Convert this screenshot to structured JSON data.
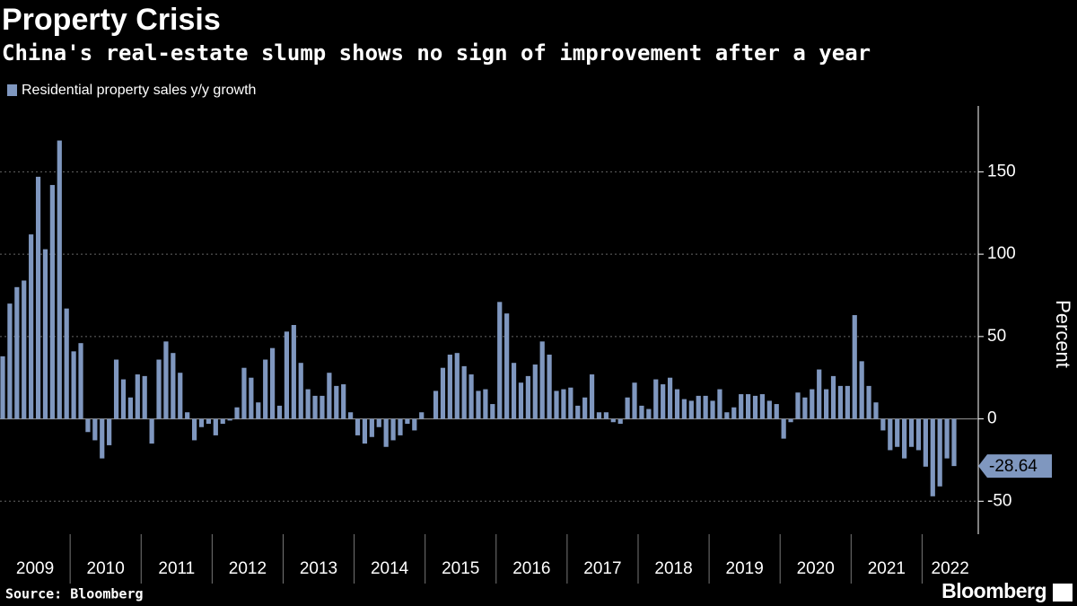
{
  "chart_data": {
    "type": "bar",
    "title": "Property Crisis",
    "subtitle": "China's real-estate slump shows no sign of improvement after a year",
    "source": "Source: Bloomberg",
    "logo": "Bloomberg",
    "y_label": "Percent",
    "color": "#7f97bf",
    "series": [
      {
        "name": "Residential property sales y/y growth",
        "color": "#7f97bf",
        "values": [
          38,
          70,
          80,
          84,
          112,
          147,
          103,
          142,
          169,
          67,
          41,
          46,
          -8,
          -13,
          -24,
          -16,
          36,
          24,
          13,
          27,
          26,
          -15,
          36,
          47,
          40,
          28,
          4,
          -13,
          -5,
          -3,
          -10,
          -3,
          -1,
          7,
          31,
          25,
          10,
          36,
          43,
          8,
          53,
          57,
          34,
          18,
          14,
          14,
          28,
          20,
          21,
          4,
          -10,
          -15,
          -11,
          -5,
          -17,
          -13,
          -10,
          -3,
          -7,
          4,
          0,
          17,
          31,
          39,
          40,
          32,
          27,
          17,
          18,
          9,
          71,
          64,
          34,
          22,
          26,
          33,
          47,
          39,
          17,
          18,
          19,
          8,
          13,
          27,
          4,
          4,
          -2,
          -3,
          13,
          22,
          8,
          6,
          24,
          21,
          25,
          18,
          12,
          11,
          14,
          14,
          11,
          18,
          4,
          7,
          15,
          15,
          14,
          15,
          11,
          9,
          -12,
          -2,
          16,
          13,
          18,
          30,
          18,
          26,
          20,
          20,
          63,
          35,
          20,
          10,
          -7,
          -19,
          -17,
          -24,
          -17,
          -19,
          -29,
          -47,
          -41,
          -24,
          -28.64
        ]
      }
    ],
    "categories": [
      "2009",
      null,
      null,
      null,
      null,
      null,
      null,
      null,
      null,
      null,
      "2010",
      null,
      null,
      null,
      null,
      null,
      null,
      null,
      null,
      null,
      "2011",
      null,
      null,
      null,
      null,
      null,
      null,
      null,
      null,
      null,
      "2012",
      null,
      null,
      null,
      null,
      null,
      null,
      null,
      null,
      null,
      "2013",
      null,
      null,
      null,
      null,
      null,
      null,
      null,
      null,
      null,
      "2014",
      null,
      null,
      null,
      null,
      null,
      null,
      null,
      null,
      null,
      "2015",
      null,
      null,
      null,
      null,
      null,
      null,
      null,
      null,
      null,
      "2016",
      null,
      null,
      null,
      null,
      null,
      null,
      null,
      null,
      null,
      "2017",
      null,
      null,
      null,
      null,
      null,
      null,
      null,
      null,
      null,
      "2018",
      null,
      null,
      null,
      null,
      null,
      null,
      null,
      null,
      null,
      "2019",
      null,
      null,
      null,
      null,
      null,
      null,
      null,
      null,
      null,
      "2020",
      null,
      null,
      null,
      null,
      null,
      null,
      null,
      null,
      null,
      "2021",
      null,
      null,
      null,
      null,
      null,
      null,
      null,
      null,
      null,
      "2022",
      null,
      null,
      null,
      null
    ],
    "ylim": [
      -70,
      190
    ],
    "yticks": [
      -50,
      0,
      50,
      100,
      150
    ],
    "grid": true
  }
}
